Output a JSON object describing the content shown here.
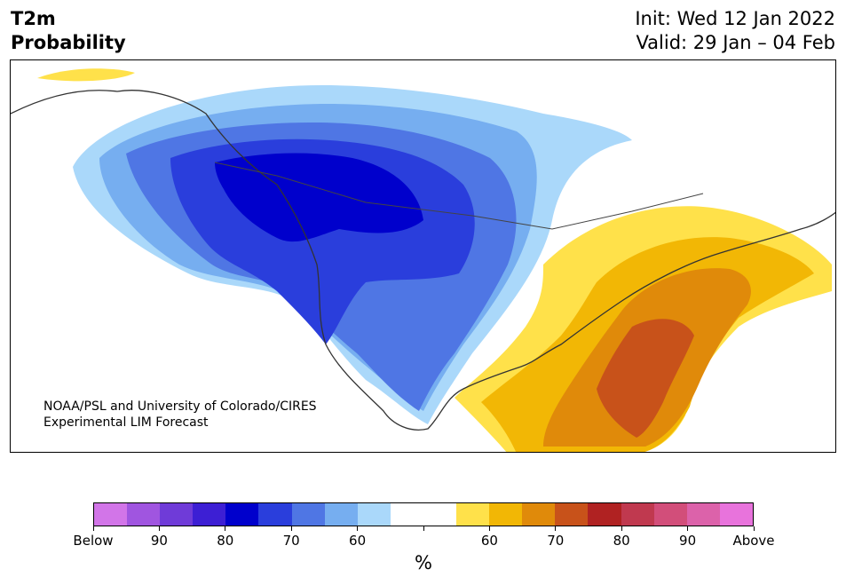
{
  "header": {
    "title_line1": "T2m",
    "title_line2": "Probability",
    "init": "Init: Wed 12 Jan 2022",
    "valid": "Valid: 29 Jan – 04 Feb"
  },
  "credit": {
    "line1": "NOAA/PSL and University of Colorado/CIRES",
    "line2": "Experimental LIM Forecast"
  },
  "colorbar": {
    "colors": [
      "#d275e8",
      "#a055e0",
      "#6f3bd8",
      "#3d1fd4",
      "#0000cc",
      "#2a3edc",
      "#4f76e4",
      "#76aef0",
      "#aad8fa",
      "#ffffff",
      "#ffffff",
      "#ffe14a",
      "#f2b705",
      "#e08a0a",
      "#c8521a",
      "#b02222",
      "#c0394f",
      "#d24e7a",
      "#dc62aa",
      "#e873dc"
    ],
    "tick_labels": [
      "Below",
      "90",
      "80",
      "70",
      "60",
      "",
      "60",
      "70",
      "80",
      "90",
      "Above"
    ],
    "unit": "%"
  }
}
